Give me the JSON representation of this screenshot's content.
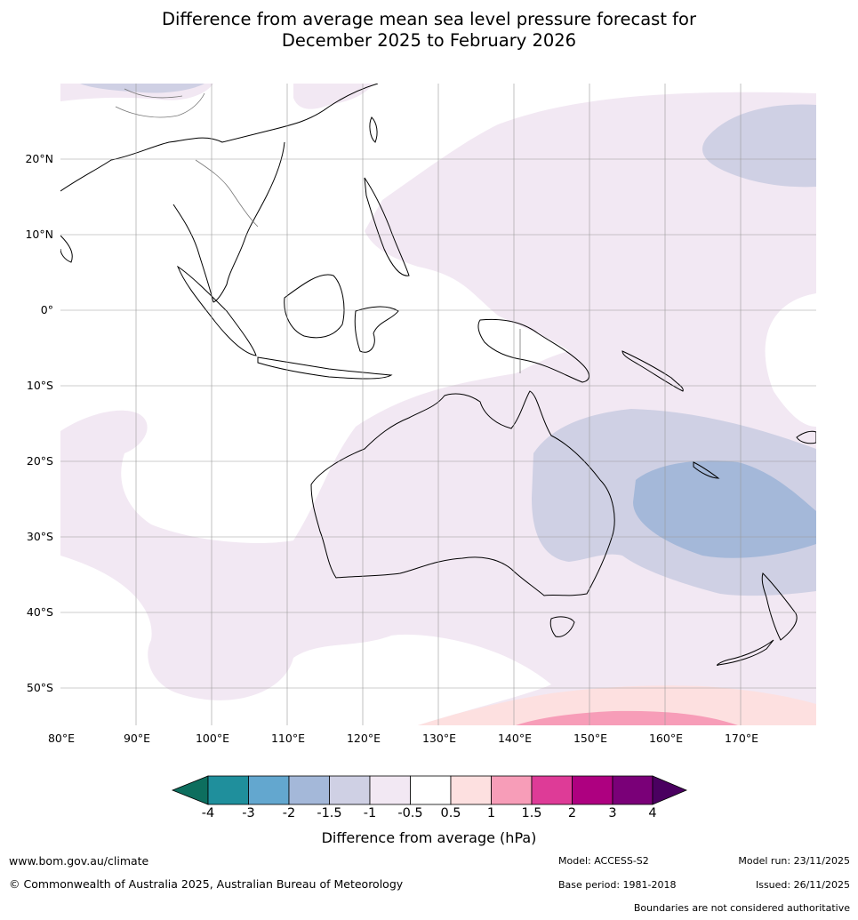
{
  "title": {
    "line1": "Difference from average mean sea level pressure forecast for",
    "line2": "December 2025 to February 2026"
  },
  "map": {
    "latitude_labels": [
      "20°N",
      "10°N",
      "0°",
      "10°S",
      "20°S",
      "30°S",
      "40°S",
      "50°S"
    ],
    "longitude_labels": [
      "80°E",
      "90°E",
      "100°E",
      "110°E",
      "120°E",
      "130°E",
      "140°E",
      "150°E",
      "160°E",
      "170°E"
    ],
    "regions": [
      "Indian Ocean",
      "Maritime Continent",
      "Australia",
      "Western Pacific",
      "New Zealand",
      "Southern Ocean"
    ],
    "features": [
      "negative anomaly over Coral Sea and eastern Australia (-1.5 to -1 hPa)",
      "weak negative anomaly (-0.5 to -1 hPa) across most of the region",
      "positive anomaly in the Southern Ocean south of New Zealand (0.5 to 1.5 hPa)"
    ]
  },
  "colorbar": {
    "title": "Difference from average (hPa)",
    "tick_labels": [
      "-4",
      "-3",
      "-2",
      "-1.5",
      "-1",
      "-0.5",
      "0.5",
      "1",
      "1.5",
      "2",
      "3",
      "4"
    ],
    "colors": [
      "#0d6e5e",
      "#1f8f9c",
      "#63a7cf",
      "#a4b8d9",
      "#cfd0e4",
      "#f2e8f3",
      "#ffffff",
      "#fde0e0",
      "#f79db8",
      "#de3b97",
      "#ae0080",
      "#7a0078",
      "#4a0060"
    ]
  },
  "footer": {
    "website": "www.bom.gov.au/climate",
    "copyright": "© Commonwealth of Australia 2025, Australian Bureau of Meteorology",
    "model": "Model: ACCESS-S2",
    "base_period": "Base period: 1981-2018",
    "model_run": "Model run: 23/11/2025",
    "issued": "Issued: 26/11/2025",
    "disclaimer": "Boundaries are not considered authoritative"
  }
}
